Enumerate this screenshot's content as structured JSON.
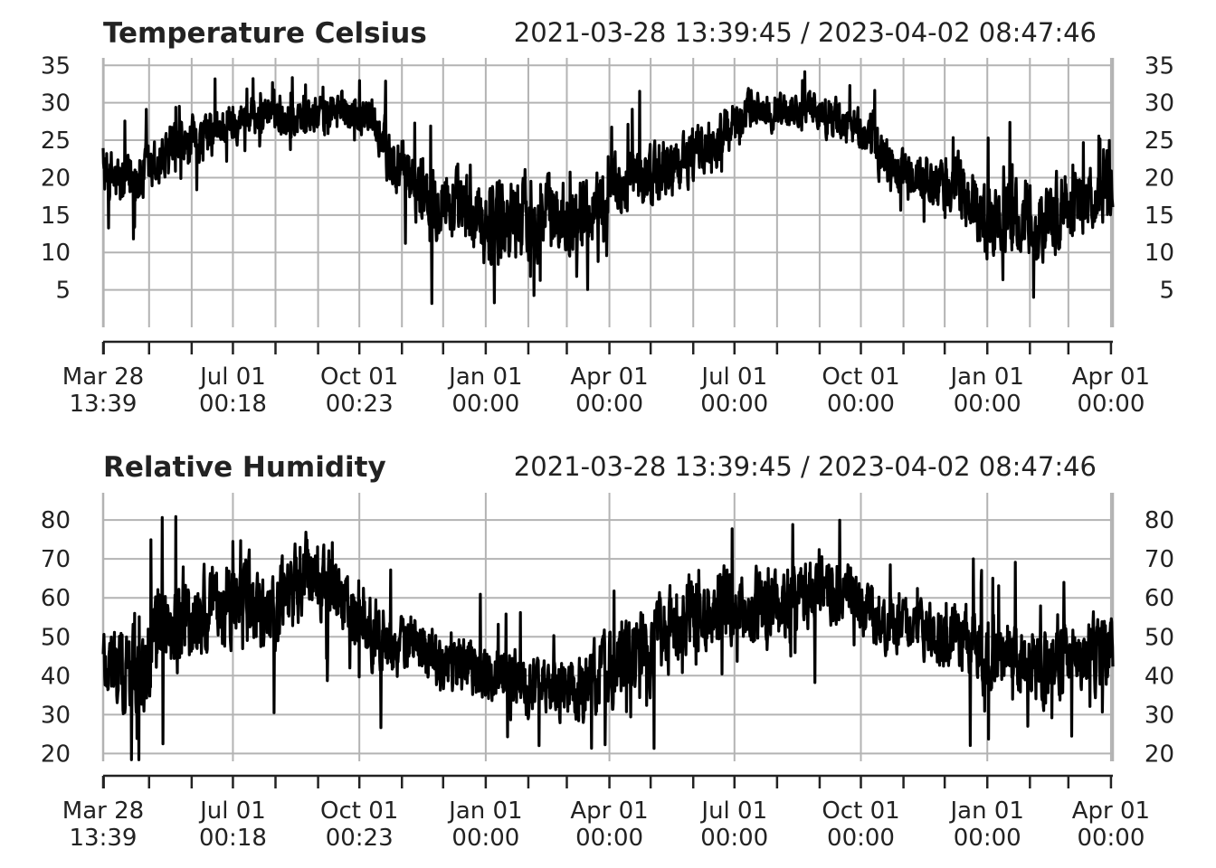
{
  "chart_data": [
    {
      "type": "line",
      "title": "Temperature Celsius",
      "range_label": "2021-03-28 13:39:45 / 2023-04-02 08:47:46",
      "x_start": "2021-03-28 13:39:45",
      "x_end": "2023-04-02 08:47:46",
      "ylim": [
        0,
        36
      ],
      "y_ticks": [
        5,
        10,
        15,
        20,
        25,
        30,
        35
      ],
      "x_tick_labels": [
        {
          "date": "2021-03-28 13:39",
          "line1": "Mar 28",
          "line2": "13:39"
        },
        {
          "date": "2021-07-01 00:18",
          "line1": "Jul 01",
          "line2": "00:18"
        },
        {
          "date": "2021-10-01 00:23",
          "line1": "Oct 01",
          "line2": "00:23"
        },
        {
          "date": "2022-01-01 00:00",
          "line1": "Jan 01",
          "line2": "00:00"
        },
        {
          "date": "2022-04-01 00:00",
          "line1": "Apr 01",
          "line2": "00:00"
        },
        {
          "date": "2022-07-01 00:00",
          "line1": "Jul 01",
          "line2": "00:00"
        },
        {
          "date": "2022-10-01 00:00",
          "line1": "Oct 01",
          "line2": "00:00"
        },
        {
          "date": "2023-01-01 00:00",
          "line1": "Jan 01",
          "line2": "00:00"
        },
        {
          "date": "2023-04-01 00:00",
          "line1": "Apr 01",
          "line2": "00:00"
        }
      ],
      "x_minor_ticks": [
        "2021-03-29",
        "2021-05-01",
        "2021-06-01",
        "2021-08-01",
        "2021-09-01",
        "2021-11-01",
        "2021-12-01",
        "2022-02-01",
        "2022-03-01",
        "2022-05-01",
        "2022-06-01",
        "2022-08-01",
        "2022-09-01",
        "2022-11-01",
        "2022-12-01",
        "2023-02-01",
        "2023-03-01"
      ],
      "grid": "vertical and horizontal",
      "line_color": "#000000",
      "grid_color": "#b3b3b3",
      "series": [
        {
          "x": [
            "2021-03-28",
            "2021-04-10",
            "2021-04-25",
            "2021-05-10",
            "2021-05-25",
            "2021-06-10",
            "2021-06-25",
            "2021-07-10",
            "2021-07-25",
            "2021-08-10",
            "2021-08-25",
            "2021-09-10",
            "2021-09-25",
            "2021-10-10",
            "2021-10-25",
            "2021-11-10",
            "2021-11-25",
            "2021-12-10",
            "2021-12-25",
            "2022-01-10",
            "2022-01-25",
            "2022-02-10",
            "2022-02-25",
            "2022-03-10",
            "2022-03-25",
            "2022-04-10",
            "2022-04-25",
            "2022-05-10",
            "2022-05-25",
            "2022-06-10",
            "2022-06-25",
            "2022-07-10",
            "2022-07-25",
            "2022-08-10",
            "2022-08-25",
            "2022-09-10",
            "2022-09-25",
            "2022-10-10",
            "2022-10-25",
            "2022-11-10",
            "2022-11-25",
            "2022-12-10",
            "2022-12-25",
            "2023-01-10",
            "2023-01-25",
            "2023-02-10",
            "2023-02-25",
            "2023-03-10",
            "2023-03-25",
            "2023-04-02"
          ],
          "y_mid": [
            21,
            19,
            20,
            22,
            24,
            25,
            27,
            28,
            29,
            28,
            28,
            29,
            29,
            28,
            22,
            19,
            18,
            16,
            14,
            14,
            15,
            15,
            15,
            15,
            17,
            19,
            20,
            21,
            22,
            24,
            26,
            29,
            29,
            29,
            29,
            28,
            27,
            25,
            21,
            20,
            19,
            19,
            15,
            14,
            15,
            14,
            16,
            17,
            18,
            18
          ],
          "y_spread": [
            4,
            5,
            5,
            4,
            4,
            4,
            3,
            3,
            3,
            3,
            3,
            3,
            3,
            3,
            5,
            5,
            6,
            6,
            6,
            7,
            7,
            6,
            6,
            6,
            5,
            5,
            5,
            5,
            4,
            4,
            4,
            3,
            3,
            3,
            3,
            3,
            3,
            4,
            4,
            4,
            4,
            5,
            6,
            6,
            6,
            6,
            6,
            5,
            5,
            4
          ]
        }
      ]
    },
    {
      "type": "line",
      "title": "Relative Humidity",
      "range_label": "2021-03-28 13:39:45 / 2023-04-02 08:47:46",
      "x_start": "2021-03-28 13:39:45",
      "x_end": "2023-04-02 08:47:46",
      "ylim": [
        18,
        87
      ],
      "y_ticks": [
        20,
        30,
        40,
        50,
        60,
        70,
        80
      ],
      "x_tick_labels": [
        {
          "date": "2021-03-28 13:39",
          "line1": "Mar 28",
          "line2": "13:39"
        },
        {
          "date": "2021-07-01 00:18",
          "line1": "Jul 01",
          "line2": "00:18"
        },
        {
          "date": "2021-10-01 00:23",
          "line1": "Oct 01",
          "line2": "00:23"
        },
        {
          "date": "2022-01-01 00:00",
          "line1": "Jan 01",
          "line2": "00:00"
        },
        {
          "date": "2022-04-01 00:00",
          "line1": "Apr 01",
          "line2": "00:00"
        },
        {
          "date": "2022-07-01 00:00",
          "line1": "Jul 01",
          "line2": "00:00"
        },
        {
          "date": "2022-10-01 00:00",
          "line1": "Oct 01",
          "line2": "00:00"
        },
        {
          "date": "2023-01-01 00:00",
          "line1": "Jan 01",
          "line2": "00:00"
        },
        {
          "date": "2023-04-01 00:00",
          "line1": "Apr 01",
          "line2": "00:00"
        }
      ],
      "x_minor_ticks": [
        "2021-03-29",
        "2021-05-01",
        "2021-06-01",
        "2021-08-01",
        "2021-09-01",
        "2021-11-01",
        "2021-12-01",
        "2022-02-01",
        "2022-03-01",
        "2022-05-01",
        "2022-06-01",
        "2022-08-01",
        "2022-09-01",
        "2022-11-01",
        "2022-12-01",
        "2023-02-01",
        "2023-03-01"
      ],
      "grid": "horizontal, plus vertical at quarter ticks",
      "line_color": "#000000",
      "grid_color": "#b3b3b3",
      "series": [
        {
          "x": [
            "2021-03-28",
            "2021-04-10",
            "2021-04-25",
            "2021-05-10",
            "2021-05-25",
            "2021-06-10",
            "2021-06-25",
            "2021-07-10",
            "2021-07-25",
            "2021-08-10",
            "2021-08-25",
            "2021-09-10",
            "2021-09-25",
            "2021-10-10",
            "2021-10-25",
            "2021-11-10",
            "2021-11-25",
            "2021-12-10",
            "2021-12-25",
            "2022-01-10",
            "2022-01-25",
            "2022-02-10",
            "2022-02-25",
            "2022-03-10",
            "2022-03-25",
            "2022-04-10",
            "2022-04-25",
            "2022-05-10",
            "2022-05-25",
            "2022-06-10",
            "2022-06-25",
            "2022-07-10",
            "2022-07-25",
            "2022-08-10",
            "2022-08-25",
            "2022-09-10",
            "2022-09-25",
            "2022-10-10",
            "2022-10-25",
            "2022-11-10",
            "2022-11-25",
            "2022-12-10",
            "2022-12-25",
            "2023-01-10",
            "2023-01-25",
            "2023-02-10",
            "2023-02-25",
            "2023-03-10",
            "2023-03-25",
            "2023-04-02"
          ],
          "y_mid": [
            45,
            40,
            42,
            52,
            52,
            55,
            58,
            60,
            55,
            58,
            68,
            62,
            56,
            52,
            48,
            47,
            45,
            44,
            42,
            40,
            38,
            37,
            36,
            37,
            40,
            43,
            45,
            50,
            55,
            57,
            58,
            57,
            56,
            58,
            62,
            63,
            60,
            56,
            53,
            52,
            50,
            50,
            48,
            45,
            44,
            43,
            44,
            44,
            46,
            45
          ],
          "y_spread": [
            12,
            14,
            14,
            15,
            14,
            13,
            13,
            13,
            12,
            13,
            12,
            12,
            11,
            10,
            10,
            9,
            9,
            9,
            9,
            9,
            9,
            9,
            9,
            10,
            11,
            12,
            12,
            12,
            11,
            11,
            11,
            11,
            11,
            11,
            10,
            10,
            9,
            9,
            8,
            8,
            9,
            10,
            11,
            11,
            11,
            11,
            11,
            11,
            11,
            11
          ]
        }
      ]
    }
  ]
}
